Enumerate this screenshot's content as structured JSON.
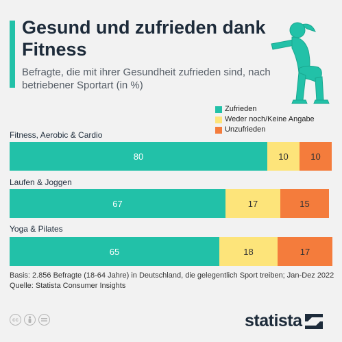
{
  "title": "Gesund und zufrieden dank Fitness",
  "subtitle": "Befragte, die mit ihrer Gesundheit zufrieden sind, nach betriebener Sportart (in %)",
  "colors": {
    "accent": "#22c1a8",
    "zufrieden": "#22c1a8",
    "weder": "#fde47a",
    "unzufrieden": "#f47c3c"
  },
  "chart_data": {
    "type": "bar",
    "orientation": "horizontal",
    "stacked": true,
    "categories": [
      "Fitness, Aerobic & Cardio",
      "Laufen & Joggen",
      "Yoga & Pilates"
    ],
    "series": [
      {
        "name": "Zufrieden",
        "color": "#22c1a8",
        "values": [
          80,
          67,
          65
        ]
      },
      {
        "name": "Weder noch/Keine Angabe",
        "color": "#fde47a",
        "values": [
          10,
          17,
          18
        ]
      },
      {
        "name": "Unzufrieden",
        "color": "#f47c3c",
        "values": [
          10,
          15,
          17
        ]
      }
    ],
    "legend_position": "top-right",
    "xlim": [
      0,
      100
    ]
  },
  "footer": {
    "basis": "Basis: 2.856 Befragte (18-64 Jahre) in Deutschland, die gelegentlich Sport treiben; Jan-Dez 2022",
    "source": "Quelle: Statista Consumer Insights"
  },
  "icons": [
    "cc-icon",
    "by-icon",
    "nd-icon",
    "person-squat-icon",
    "statista-logo-icon"
  ],
  "logo_text": "statista"
}
